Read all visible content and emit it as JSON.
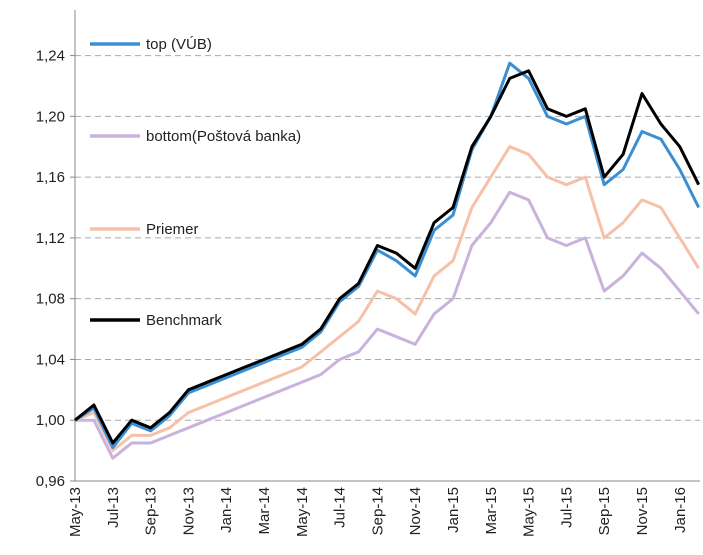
{
  "chart_data": {
    "type": "line",
    "categories": [
      "May-13",
      null,
      "Jul-13",
      null,
      "Sep-13",
      null,
      "Nov-13",
      null,
      "Jan-14",
      null,
      "Mar-14",
      null,
      "May-14",
      null,
      "Jul-14",
      null,
      "Sep-14",
      null,
      "Nov-14",
      null,
      "Jan-15",
      null,
      "Mar-15",
      null,
      "May-15",
      null,
      "Jul-15",
      null,
      "Sep-15",
      null,
      "Nov-15",
      null,
      "Jan-16",
      null
    ],
    "series": [
      {
        "name": "top (VÚB)",
        "color": "#3a8fd4",
        "values": [
          1.0,
          1.008,
          0.982,
          0.998,
          0.993,
          1.003,
          1.018,
          1.023,
          1.028,
          1.033,
          1.038,
          1.043,
          1.048,
          1.058,
          1.078,
          1.088,
          1.112,
          1.105,
          1.095,
          1.125,
          1.135,
          1.178,
          1.2,
          1.235,
          1.225,
          1.2,
          1.195,
          1.2,
          1.155,
          1.165,
          1.19,
          1.185,
          1.165,
          1.14
        ]
      },
      {
        "name": "bottom(Poštová banka)",
        "color": "#c9b3dd",
        "values": [
          1.0,
          1.0,
          0.975,
          0.985,
          0.985,
          0.99,
          0.995,
          1.0,
          1.005,
          1.01,
          1.015,
          1.02,
          1.025,
          1.03,
          1.04,
          1.045,
          1.06,
          1.055,
          1.05,
          1.07,
          1.08,
          1.115,
          1.13,
          1.15,
          1.145,
          1.12,
          1.115,
          1.12,
          1.085,
          1.095,
          1.11,
          1.1,
          1.085,
          1.07
        ]
      },
      {
        "name": "Priemer",
        "color": "#f6c1a8",
        "values": [
          1.0,
          1.005,
          0.98,
          0.99,
          0.99,
          0.995,
          1.005,
          1.01,
          1.015,
          1.02,
          1.025,
          1.03,
          1.035,
          1.045,
          1.055,
          1.065,
          1.085,
          1.08,
          1.07,
          1.095,
          1.105,
          1.14,
          1.16,
          1.18,
          1.175,
          1.16,
          1.155,
          1.16,
          1.12,
          1.13,
          1.145,
          1.14,
          1.12,
          1.1
        ]
      },
      {
        "name": "Benchmark",
        "color": "#000000",
        "values": [
          1.0,
          1.01,
          0.985,
          1.0,
          0.995,
          1.005,
          1.02,
          1.025,
          1.03,
          1.035,
          1.04,
          1.045,
          1.05,
          1.06,
          1.08,
          1.09,
          1.115,
          1.11,
          1.1,
          1.13,
          1.14,
          1.18,
          1.2,
          1.225,
          1.23,
          1.205,
          1.2,
          1.205,
          1.16,
          1.175,
          1.215,
          1.195,
          1.18,
          1.155
        ]
      }
    ],
    "ylim": [
      0.96,
      1.27
    ],
    "yticks": [
      {
        "value": 0.96,
        "label": "0,96"
      },
      {
        "value": 1.0,
        "label": "1,00"
      },
      {
        "value": 1.04,
        "label": "1,04"
      },
      {
        "value": 1.08,
        "label": "1,08"
      },
      {
        "value": 1.12,
        "label": "1,12"
      },
      {
        "value": 1.16,
        "label": "1,16"
      },
      {
        "value": 1.2,
        "label": "1,20"
      },
      {
        "value": 1.24,
        "label": "1,24"
      }
    ],
    "grid": true
  }
}
